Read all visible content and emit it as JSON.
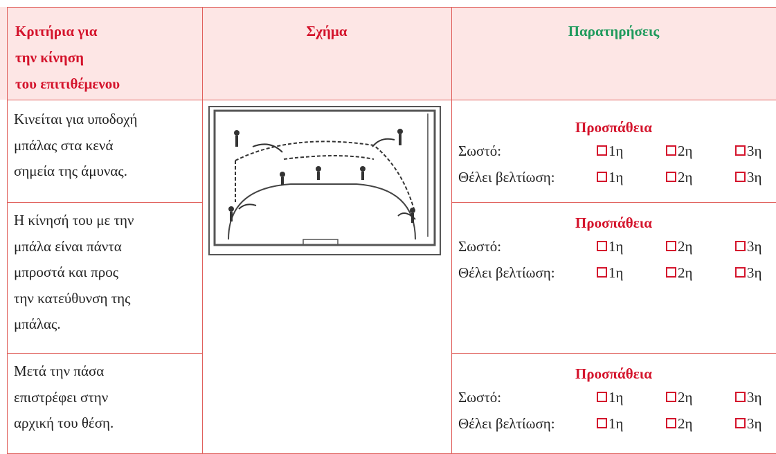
{
  "header": {
    "criteria_lines": [
      "Κριτήρια για",
      "την κίνηση",
      "του  επιτιθέμενου"
    ],
    "figure": "Σχήμα",
    "observations": "Παρατηρήσεις"
  },
  "rows": [
    {
      "criterion_lines": [
        "Κινείται για υποδοχή",
        "μπάλας στα κενά",
        "σημεία της άμυνας."
      ],
      "observation": {
        "title": "Προσπάθεια",
        "items": [
          {
            "label": "Σωστό:",
            "options": [
              "1η",
              "2η",
              "3η"
            ]
          },
          {
            "label": "Θέλει βελτίωση:",
            "options": [
              "1η",
              "2η",
              "3η"
            ]
          }
        ]
      }
    },
    {
      "criterion_lines": [
        "Η κίνησή του με την",
        "μπάλα είναι πάντα",
        "μπροστά και προς",
        "την κατεύθυνση της",
        "μπάλας."
      ],
      "observation": {
        "title": "Προσπάθεια",
        "items": [
          {
            "label": "Σωστό:",
            "options": [
              "1η",
              "2η",
              "3η"
            ]
          },
          {
            "label": "Θέλει βελτίωση:",
            "options": [
              "1η",
              "2η",
              "3η"
            ]
          }
        ]
      }
    },
    {
      "criterion_lines": [
        "Μετά την πάσα",
        "επιστρέφει στην",
        "αρχική του θέση."
      ],
      "observation": {
        "title": "Προσπάθεια",
        "items": [
          {
            "label": "Σωστό:",
            "options": [
              "1η",
              "2η",
              "3η"
            ]
          },
          {
            "label": "Θέλει βελτίωση:",
            "options": [
              "1η",
              "2η",
              "3η"
            ]
          }
        ]
      }
    }
  ]
}
